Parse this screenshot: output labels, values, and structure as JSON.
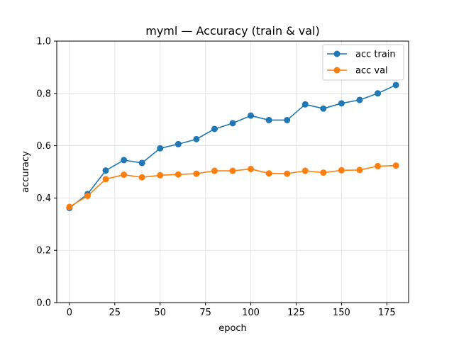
{
  "chart_data": {
    "type": "line",
    "title": "myml — Accuracy (train & val)",
    "xlabel": "epoch",
    "ylabel": "accuracy",
    "xlim": [
      -7,
      187
    ],
    "ylim": [
      0.0,
      1.0
    ],
    "x_ticks": [
      0,
      25,
      50,
      75,
      100,
      125,
      150,
      175
    ],
    "y_ticks": [
      0.0,
      0.2,
      0.4,
      0.6,
      0.8,
      1.0
    ],
    "x_tick_labels": [
      "0",
      "25",
      "50",
      "75",
      "100",
      "125",
      "150",
      "175"
    ],
    "y_tick_labels": [
      "0.0",
      "0.2",
      "0.4",
      "0.6",
      "0.8",
      "1.0"
    ],
    "grid": true,
    "legend_position": "top-right",
    "x": [
      0,
      10,
      20,
      30,
      40,
      50,
      60,
      70,
      80,
      90,
      100,
      110,
      120,
      130,
      140,
      150,
      160,
      170,
      180
    ],
    "series": [
      {
        "name": "acc train",
        "color": "#1f77b4",
        "values": [
          0.362,
          0.415,
          0.505,
          0.545,
          0.534,
          0.59,
          0.606,
          0.625,
          0.664,
          0.686,
          0.715,
          0.698,
          0.698,
          0.758,
          0.742,
          0.762,
          0.775,
          0.8,
          0.832
        ]
      },
      {
        "name": "acc val",
        "color": "#ff7f0e",
        "values": [
          0.366,
          0.408,
          0.472,
          0.489,
          0.479,
          0.487,
          0.49,
          0.493,
          0.504,
          0.504,
          0.511,
          0.494,
          0.493,
          0.504,
          0.497,
          0.506,
          0.507,
          0.522,
          0.524
        ]
      }
    ]
  }
}
